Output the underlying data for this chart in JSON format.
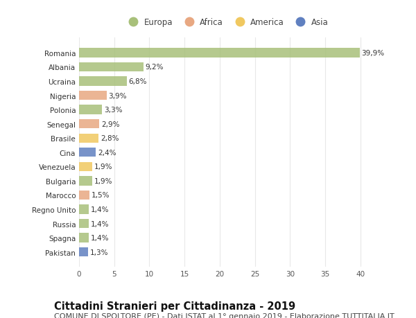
{
  "countries": [
    "Romania",
    "Albania",
    "Ucraina",
    "Nigeria",
    "Polonia",
    "Senegal",
    "Brasile",
    "Cina",
    "Venezuela",
    "Bulgaria",
    "Marocco",
    "Regno Unito",
    "Russia",
    "Spagna",
    "Pakistan"
  ],
  "values": [
    39.9,
    9.2,
    6.8,
    3.9,
    3.3,
    2.9,
    2.8,
    2.4,
    1.9,
    1.9,
    1.5,
    1.4,
    1.4,
    1.4,
    1.3
  ],
  "labels": [
    "39,9%",
    "9,2%",
    "6,8%",
    "3,9%",
    "3,3%",
    "2,9%",
    "2,8%",
    "2,4%",
    "1,9%",
    "1,9%",
    "1,5%",
    "1,4%",
    "1,4%",
    "1,4%",
    "1,3%"
  ],
  "continents": [
    "Europa",
    "Europa",
    "Europa",
    "Africa",
    "Europa",
    "Africa",
    "America",
    "Asia",
    "America",
    "Europa",
    "Africa",
    "Europa",
    "Europa",
    "Europa",
    "Asia"
  ],
  "continent_colors": {
    "Europa": "#a8c07a",
    "Africa": "#e8a882",
    "America": "#f0c860",
    "Asia": "#6080c0"
  },
  "legend_order": [
    "Europa",
    "Africa",
    "America",
    "Asia"
  ],
  "xlim": [
    0,
    42
  ],
  "xticks": [
    0,
    5,
    10,
    15,
    20,
    25,
    30,
    35,
    40
  ],
  "title": "Cittadini Stranieri per Cittadinanza - 2019",
  "subtitle": "COMUNE DI SPOLTORE (PE) - Dati ISTAT al 1° gennaio 2019 - Elaborazione TUTTITALIA.IT",
  "background_color": "#ffffff",
  "bar_height": 0.65,
  "grid_color": "#e0e0e0",
  "title_fontsize": 10.5,
  "subtitle_fontsize": 8,
  "label_fontsize": 7.5,
  "tick_fontsize": 7.5,
  "legend_fontsize": 8.5
}
